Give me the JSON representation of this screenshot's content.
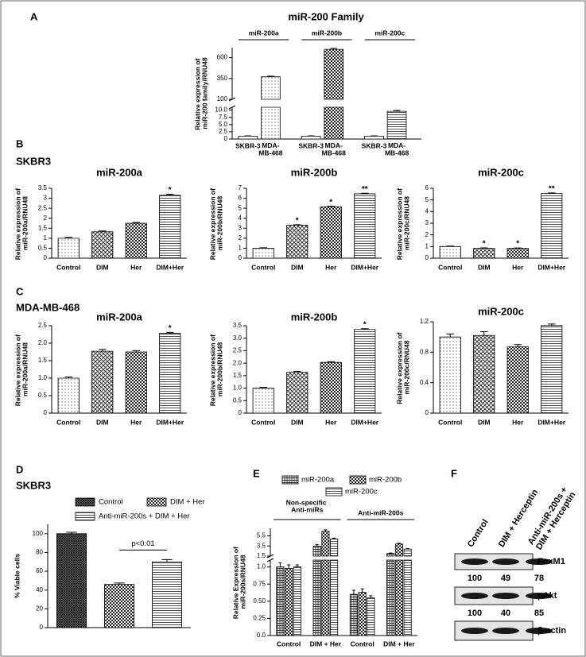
{
  "panels": [
    {
      "letter": "A"
    },
    {
      "letter": "B",
      "subtitle": "SKBR3"
    },
    {
      "letter": "C",
      "subtitle": "MDA-MB-468"
    },
    {
      "letter": "D",
      "subtitle": "SKBR3"
    },
    {
      "letter": "E"
    },
    {
      "letter": "F"
    }
  ],
  "chart_data": [
    {
      "type": "broken_bar",
      "title": "miR-200 Family",
      "ylabel": "Relative expression of miR-200 family/RNU48",
      "y_segments": [
        {
          "ylim": [
            0,
            11
          ],
          "yticks": [
            0,
            2.5,
            {
              "value": 5,
              "label": "5.0"
            },
            7.5,
            {
              "value": 10,
              "label": "10.0"
            }
          ]
        },
        {
          "ylim": [
            100,
            720
          ],
          "yticks": [
            100,
            350,
            600
          ]
        }
      ],
      "groups": [
        {
          "name": "miR-200a",
          "categories": [
            "SKBR-3",
            "MDA-MB-468"
          ],
          "values": [
            1,
            370
          ],
          "errors": [
            0.1,
            8
          ],
          "patterns": [
            "blank",
            "dots"
          ]
        },
        {
          "name": "miR-200b",
          "categories": [
            "SKBR-3",
            "MDA-MB-468"
          ],
          "values": [
            1,
            700
          ],
          "errors": [
            0.1,
            12
          ],
          "patterns": [
            "blank",
            "checker"
          ]
        },
        {
          "name": "miR-200c",
          "categories": [
            "SKBR-3",
            "MDA-MB-468"
          ],
          "values": [
            1,
            9.6
          ],
          "errors": [
            0.1,
            0.3
          ],
          "patterns": [
            "blank",
            "hlines"
          ]
        }
      ]
    },
    {
      "type": "bar",
      "title": "miR-200a",
      "ylabel": "Relative expression of miR-200a/RNU48",
      "categories": [
        "Control",
        "DIM",
        "Her",
        "DIM+Her"
      ],
      "values": [
        1.0,
        1.32,
        1.75,
        3.15
      ],
      "errors": [
        0.04,
        0.04,
        0.04,
        0.05
      ],
      "patterns": [
        "dots",
        "crosshatch",
        "checker",
        "hlines"
      ],
      "stars": [
        null,
        null,
        null,
        "*"
      ],
      "ylim": [
        0,
        3.5
      ],
      "yticks": [
        0,
        0.5,
        1,
        1.5,
        2,
        2.5,
        3,
        3.5
      ]
    },
    {
      "type": "bar",
      "title": "miR-200b",
      "ylabel": "Relative expression of miR-200b/RNU48",
      "categories": [
        "Control",
        "DIM",
        "Her",
        "DIM+Her"
      ],
      "values": [
        1.0,
        3.3,
        5.15,
        6.45
      ],
      "errors": [
        0.04,
        0.05,
        0.05,
        0.05
      ],
      "patterns": [
        "dots",
        "crosshatch",
        "checker",
        "hlines"
      ],
      "stars": [
        null,
        "*",
        "*",
        "**"
      ],
      "ylim": [
        0,
        7
      ],
      "yticks": [
        0,
        1,
        2,
        3,
        4,
        5,
        6,
        7
      ]
    },
    {
      "type": "bar",
      "title": "miR-200c",
      "ylabel": "Relative expression of miR-200c/RNU48",
      "categories": [
        "Control",
        "DIM",
        "Her",
        "DIM+Her"
      ],
      "values": [
        1.0,
        0.85,
        0.85,
        5.55
      ],
      "errors": [
        0.04,
        0.04,
        0.03,
        0.05
      ],
      "patterns": [
        "dots",
        "crosshatch",
        "checker",
        "hlines"
      ],
      "stars": [
        null,
        "*",
        "*",
        "**"
      ],
      "ylim": [
        0,
        6
      ],
      "yticks": [
        0,
        1,
        2,
        3,
        4,
        5,
        6
      ]
    },
    {
      "type": "bar",
      "title": "miR-200a",
      "ylabel": "Relative expression of miR-200a/RNU48",
      "categories": [
        "Control",
        "DIM",
        "Her",
        "DIM+Her"
      ],
      "values": [
        1.0,
        1.77,
        1.75,
        2.28
      ],
      "errors": [
        0.03,
        0.05,
        0.04,
        0.03
      ],
      "patterns": [
        "dots",
        "crosshatch",
        "checker",
        "hlines"
      ],
      "stars": [
        null,
        null,
        null,
        "*"
      ],
      "ylim": [
        0,
        2.5
      ],
      "yticks": [
        0,
        0.5,
        {
          "value": 1,
          "label": "1.0"
        },
        1.5,
        {
          "value": 2,
          "label": "2.0"
        },
        2.5
      ]
    },
    {
      "type": "bar",
      "title": "miR-200b",
      "ylabel": "Relative expression of miR-200b/RNU48",
      "categories": [
        "Control",
        "DIM",
        "Her",
        "DIM+Her"
      ],
      "values": [
        1.0,
        1.63,
        2.03,
        3.35
      ],
      "errors": [
        0.03,
        0.04,
        0.03,
        0.03
      ],
      "patterns": [
        "dots",
        "crosshatch",
        "checker",
        "hlines"
      ],
      "stars": [
        null,
        null,
        null,
        "*"
      ],
      "ylim": [
        0,
        3.5
      ],
      "yticks": [
        0,
        0.5,
        {
          "value": 1,
          "label": "1.0"
        },
        1.5,
        {
          "value": 2,
          "label": "2.0"
        },
        2.5,
        {
          "value": 3,
          "label": "3.0"
        },
        3.5
      ]
    },
    {
      "type": "bar",
      "title": "miR-200c",
      "ylabel": "Relative expression of miR-200c/RNU48",
      "categories": [
        "Control",
        "DIM",
        "Her",
        "DIM+Her"
      ],
      "values": [
        1.0,
        1.02,
        0.87,
        1.15
      ],
      "errors": [
        0.04,
        0.05,
        0.03,
        0.02
      ],
      "patterns": [
        "dots",
        "crosshatch",
        "checker",
        "hlines"
      ],
      "ylim": [
        0,
        1.2
      ],
      "yticks": [
        0,
        0.4,
        0.8,
        1.2
      ]
    },
    {
      "type": "bar",
      "ylabel": "% Viable cells",
      "categories": [
        "Control",
        "DIM + Her",
        "Anti-miR-200s + DIM + Her"
      ],
      "values": [
        100,
        46,
        70
      ],
      "errors": [
        1.5,
        1.5,
        2.5
      ],
      "patterns": [
        "dense",
        "checker",
        "hlines"
      ],
      "legend": "top",
      "ylim": [
        0,
        110
      ],
      "yticks": [
        0,
        20,
        40,
        60,
        80,
        100
      ],
      "bracket": {
        "label": "p<0.01",
        "from": 1,
        "to": 2
      }
    },
    {
      "type": "broken_grouped_bar",
      "ylabel": "Relative Expression of miR-200s/RNU48",
      "legend": "top",
      "y_segments": [
        {
          "ylim": [
            0,
            1.1
          ],
          "yticks": [
            {
              "value": 0,
              "label": "0.0"
            },
            0.25,
            {
              "value": 0.5,
              "label": "0.50"
            },
            0.75,
            {
              "value": 1,
              "label": "1.0"
            }
          ]
        },
        {
          "ylim": [
            1.5,
            7
          ],
          "yticks": [
            1.5,
            3.5,
            5.5
          ]
        }
      ],
      "groups": [
        {
          "name": "Non-specific Anti-miRs",
          "categories": [
            "Control",
            "DIM + Her"
          ]
        },
        {
          "name": "Anti-miR-200s",
          "categories": [
            "Control",
            "DIM + Her"
          ]
        }
      ],
      "series": [
        {
          "name": "miR-200a",
          "pattern": "vlines",
          "values": [
            1.0,
            3.5,
            0.6,
            2.0
          ],
          "errors": [
            0.06,
            0.3,
            0.06,
            0.1
          ]
        },
        {
          "name": "miR-200b",
          "pattern": "checker",
          "values": [
            0.98,
            6.4,
            0.63,
            3.9
          ],
          "errors": [
            0.05,
            0.3,
            0.05,
            0.15
          ]
        },
        {
          "name": "miR-200c",
          "pattern": "hlines",
          "values": [
            1.0,
            4.9,
            0.55,
            2.9
          ],
          "errors": [
            0.03,
            0.15,
            0.03,
            0.1
          ]
        }
      ]
    }
  ],
  "blot": {
    "columns": [
      "Control",
      "DIM + Herceptin",
      "Anti-miR-200s + DIM + Herceptin"
    ],
    "rows": [
      {
        "label": "FoxM1",
        "quantification": [
          100,
          49,
          78
        ]
      },
      {
        "label": "pAkt",
        "quantification": [
          100,
          40,
          85
        ]
      },
      {
        "label": "β-actin"
      }
    ]
  }
}
